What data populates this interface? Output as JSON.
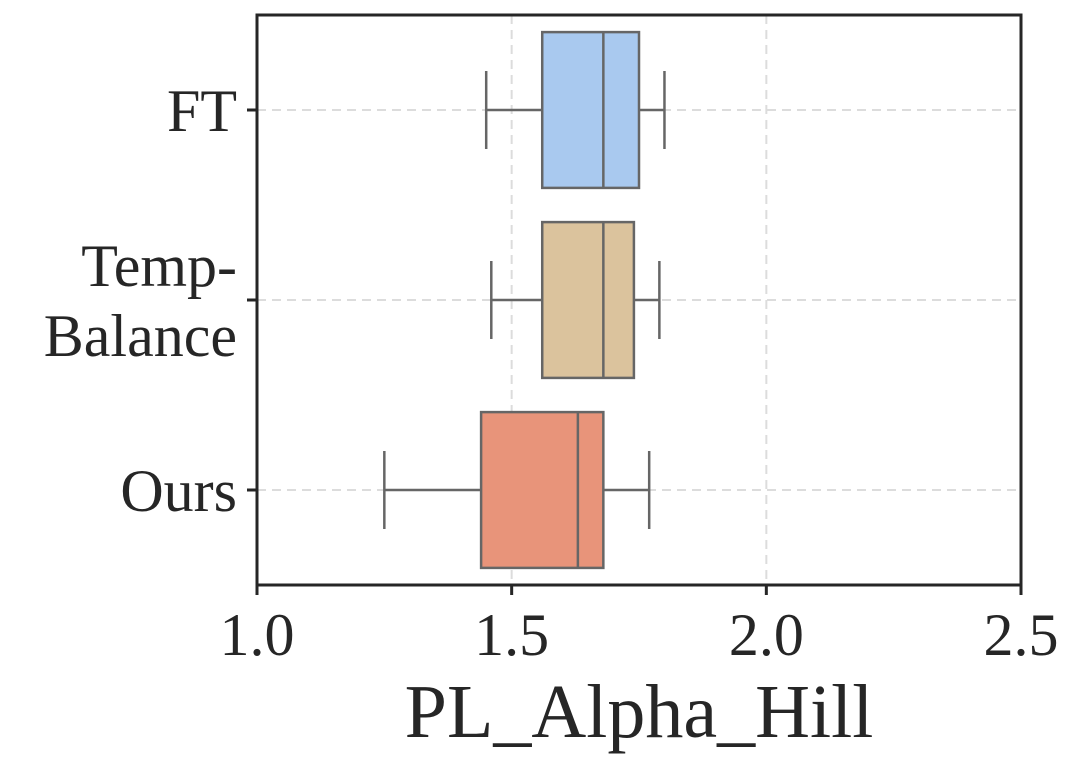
{
  "chart_data": {
    "type": "boxplot",
    "orientation": "horizontal",
    "title": "",
    "xlabel": "PL_Alpha_Hill",
    "ylabel": "",
    "xlim": [
      1.0,
      2.5
    ],
    "xticks": [
      1.0,
      1.5,
      2.0,
      2.5
    ],
    "xtick_labels": [
      "1.0",
      "1.5",
      "2.0",
      "2.5"
    ],
    "grid": true,
    "categories": [
      {
        "label_lines": [
          "FT"
        ],
        "color": "#a9c9ef",
        "whisker_low": 1.45,
        "q1": 1.56,
        "median": 1.68,
        "q3": 1.75,
        "whisker_high": 1.8
      },
      {
        "label_lines": [
          "Temp-",
          "Balance"
        ],
        "color": "#dbc39d",
        "whisker_low": 1.46,
        "q1": 1.56,
        "median": 1.68,
        "q3": 1.74,
        "whisker_high": 1.79
      },
      {
        "label_lines": [
          "Ours"
        ],
        "color": "#e8947a",
        "whisker_low": 1.25,
        "q1": 1.44,
        "median": 1.63,
        "q3": 1.68,
        "whisker_high": 1.77
      }
    ]
  }
}
